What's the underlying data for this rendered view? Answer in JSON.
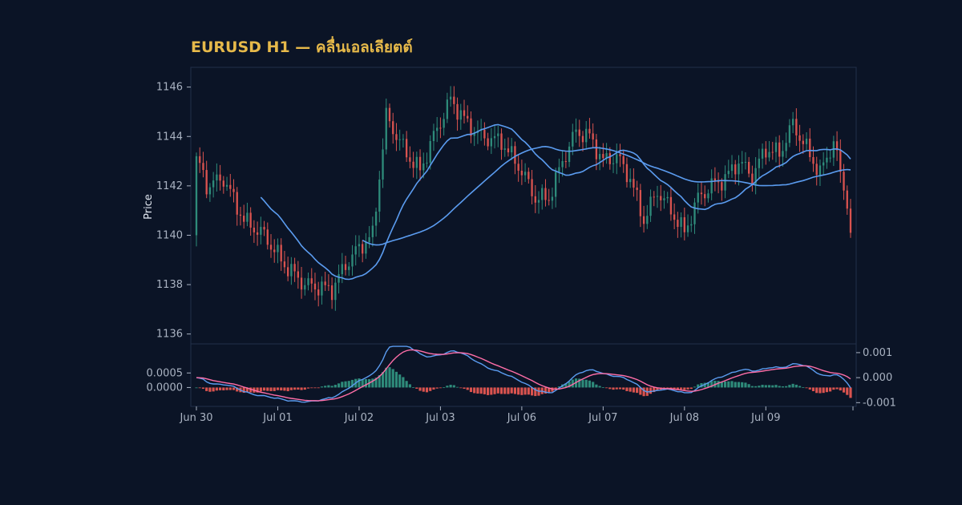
{
  "chart_data": {
    "type": "candlestick",
    "title": "EURUSD H1 — คลื่นเอลเลียตต์",
    "ylabel": "Price",
    "price_ylim": [
      1135.6,
      1146.8
    ],
    "price_yticks": [
      1136,
      1138,
      1140,
      1142,
      1144,
      1146
    ],
    "macd_ylim_left": [
      -0.00065,
      0.0015
    ],
    "macd_yticks_left": [
      0.0,
      0.0005
    ],
    "macd_yticks_left_labels": [
      "0.0000",
      "0.0005"
    ],
    "macd_ylim_right": [
      -0.00115,
      0.00135
    ],
    "macd_yticks_right": [
      0.001,
      0.0,
      -0.001
    ],
    "macd_yticks_right_labels": [
      "0.001",
      "0.000",
      "-0.001"
    ],
    "x_tick_labels": [
      "Jun 30",
      "Jul 01",
      "Jul 02",
      "Jul 03",
      "Jul 06",
      "Jul 07",
      "Jul 08",
      "Jul 09"
    ],
    "bars_per_day": 24,
    "close_anchors": [
      [
        0,
        1143.2
      ],
      [
        3,
        1142.0
      ],
      [
        8,
        1142.3
      ],
      [
        14,
        1140.6
      ],
      [
        20,
        1140.0
      ],
      [
        26,
        1138.8
      ],
      [
        32,
        1138.0
      ],
      [
        40,
        1137.8
      ],
      [
        44,
        1138.8
      ],
      [
        48,
        1139.5
      ],
      [
        52,
        1140.0
      ],
      [
        56,
        1144.8
      ],
      [
        62,
        1143.3
      ],
      [
        66,
        1142.6
      ],
      [
        70,
        1144.0
      ],
      [
        75,
        1145.5
      ],
      [
        80,
        1144.5
      ],
      [
        84,
        1144.0
      ],
      [
        90,
        1143.8
      ],
      [
        96,
        1142.6
      ],
      [
        100,
        1141.5
      ],
      [
        104,
        1141.5
      ],
      [
        108,
        1143.0
      ],
      [
        112,
        1144.2
      ],
      [
        116,
        1144.0
      ],
      [
        120,
        1143.0
      ],
      [
        124,
        1143.2
      ],
      [
        128,
        1142.3
      ],
      [
        132,
        1140.6
      ],
      [
        136,
        1141.8
      ],
      [
        140,
        1141.0
      ],
      [
        144,
        1140.1
      ],
      [
        148,
        1141.5
      ],
      [
        152,
        1142.0
      ],
      [
        156,
        1142.3
      ],
      [
        160,
        1143.0
      ],
      [
        164,
        1142.4
      ],
      [
        168,
        1143.5
      ],
      [
        172,
        1143.3
      ],
      [
        176,
        1144.5
      ],
      [
        180,
        1143.5
      ],
      [
        184,
        1142.5
      ],
      [
        188,
        1143.8
      ],
      [
        190,
        1142.5
      ],
      [
        192,
        1141.4
      ],
      [
        193,
        1140.1
      ]
    ],
    "series": [
      {
        "name": "",
        "kind": "candles",
        "up_color": "#2e8b7a",
        "down_color": "#d9534f"
      },
      {
        "name": "",
        "kind": "sma",
        "period": 20,
        "color": "#5b9cf0"
      },
      {
        "name": "",
        "kind": "sma",
        "period": 50,
        "color": "#5b9cf0"
      },
      {
        "name": "",
        "kind": "macd_histogram",
        "up_color": "#2e8b7a",
        "down_color": "#d9534f"
      },
      {
        "name": "",
        "kind": "macd",
        "color": "#5b9cf0"
      },
      {
        "name": "",
        "kind": "signal",
        "color": "#ff6ea8"
      }
    ],
    "grid": false
  },
  "colors": {
    "background": "#0b1426",
    "frame": "#22304a",
    "title": "#e6b94a",
    "ticks": "#aab3c2"
  }
}
